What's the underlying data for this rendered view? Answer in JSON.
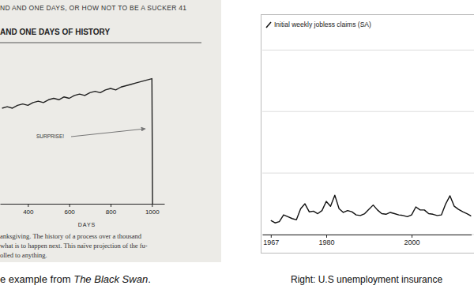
{
  "chart_data": [
    {
      "type": "line",
      "header": "ND AND ONE DAYS, OR HOW NOT TO BE A SUCKER 41",
      "title": "AND ONE DAYS OF HISTORY",
      "x_label": "DAYS",
      "annotation": "SURPRISE!",
      "notes": [
        "anksgiving. The history of a process over a thousand",
        "what is to happen next. This naïve projection of the fu-",
        "olled to anything."
      ],
      "caption": [
        "e example from ",
        "The Black Swan",
        "."
      ],
      "x": [
        275,
        300,
        325,
        350,
        375,
        400,
        425,
        450,
        475,
        500,
        525,
        550,
        575,
        600,
        625,
        650,
        675,
        700,
        725,
        750,
        775,
        800,
        825,
        850,
        875,
        900,
        925,
        950,
        975,
        1000,
        1003
      ],
      "values": [
        68,
        69,
        68,
        70,
        71,
        70,
        72,
        73,
        72,
        74,
        75,
        74,
        76,
        75,
        77,
        78,
        77,
        79,
        80,
        79,
        81,
        82,
        81,
        83,
        84,
        85,
        86,
        87,
        88,
        89,
        0
      ],
      "color": "#222222",
      "xlim": [
        265,
        1060
      ],
      "ylim": [
        0,
        100
      ],
      "xticks": [
        400,
        600,
        800,
        1000
      ],
      "tick_labels": "x"
    },
    {
      "type": "line",
      "caption": [
        "Right: U.S unemployment insurance"
      ],
      "x": [
        1967,
        1968,
        1969,
        1970,
        1971,
        1972,
        1973,
        1974,
        1975,
        1976,
        1977,
        1978,
        1979,
        1980,
        1981,
        1982,
        1983,
        1984,
        1985,
        1986,
        1987,
        1988,
        1989,
        1990,
        1991,
        1992,
        1993,
        1994,
        1995,
        1996,
        1997,
        1998,
        1999,
        2000,
        2001,
        2002,
        2003,
        2004,
        2005,
        2006,
        2007,
        2008,
        2009,
        2010,
        2011,
        2012,
        2013,
        2014
      ],
      "series": [
        {
          "name": "Initial weekly jobless claims (SA)",
          "color": "#111111",
          "values": [
            230,
            190,
            210,
            320,
            290,
            260,
            240,
            420,
            500,
            370,
            380,
            340,
            390,
            540,
            460,
            640,
            420,
            360,
            390,
            370,
            320,
            310,
            340,
            410,
            480,
            400,
            340,
            330,
            360,
            340,
            320,
            310,
            290,
            320,
            450,
            400,
            400,
            340,
            330,
            310,
            320,
            500,
            630,
            460,
            410,
            370,
            340,
            300
          ]
        }
      ],
      "xlim": [
        1965,
        2014
      ],
      "ylim": [
        0,
        3300
      ],
      "xticks": [
        1967,
        1980,
        2000
      ],
      "yticks": [
        0,
        1000,
        2000,
        3000
      ],
      "grid": true,
      "legend": "upper left",
      "tick_labels": "x"
    }
  ]
}
